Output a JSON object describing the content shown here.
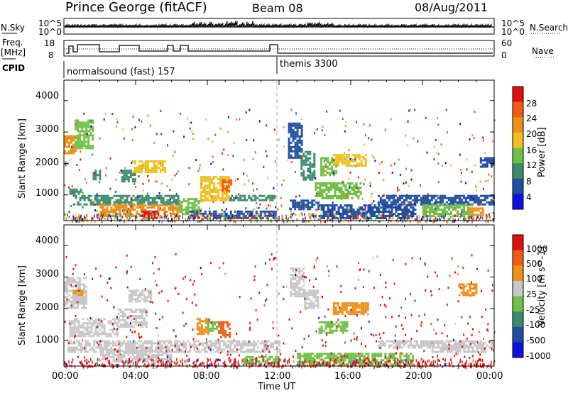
{
  "header": {
    "site": "Prince George (fitACF)",
    "beam": "Beam 08",
    "date": "08/Aug/2011"
  },
  "top_panels": {
    "nsky_label": "N.Sky",
    "nsky_ticks": [
      "10^5",
      "10^0"
    ],
    "nsearch_label": "N.Search",
    "nsearch_ticks": [
      "10^5",
      "10^0"
    ],
    "freq_label": "Freq.",
    "freq_unit": "[MHz]",
    "freq_ticks": [
      "18",
      "8"
    ],
    "nave_label": "Nave",
    "nave_ticks": [
      "60",
      "0"
    ],
    "cpid_label": "CPID",
    "programs": [
      {
        "name": "normalsound (fast) 157",
        "start_hour": 0,
        "end_hour": 12
      },
      {
        "name": "themis 3300",
        "start_hour": 12,
        "end_hour": 24
      }
    ]
  },
  "colors": {
    "power_scale": [
      "#1010e0",
      "#1f4fa0",
      "#3a8c6c",
      "#6fc046",
      "#f0c020",
      "#f09018",
      "#f05a14",
      "#e01010"
    ],
    "velocity_scale": [
      "#1010e0",
      "#1f4fa0",
      "#3a8c6c",
      "#6fc046",
      "#c8c8c8",
      "#f09018",
      "#f05a14",
      "#e01010"
    ]
  },
  "chart_data": [
    {
      "type": "heatmap",
      "parameter": "power",
      "xlabel": "",
      "ylabel": "Slant Range [km]",
      "xlim": [
        0,
        24
      ],
      "ylim": [
        180,
        4650
      ],
      "yticks": [
        "4000",
        "3000",
        "2000",
        "1000"
      ],
      "colorbar": {
        "label": "Power [dB]",
        "ticks": [
          "28",
          "24",
          "20",
          "16",
          "12",
          "8",
          "4"
        ],
        "range": [
          0,
          32
        ]
      },
      "regions": [
        {
          "t0": 0.0,
          "t1": 0.6,
          "r0": 2300,
          "r1": 2900,
          "level": 22
        },
        {
          "t0": 0.6,
          "t1": 1.6,
          "r0": 2500,
          "r1": 3400,
          "level": 12
        },
        {
          "t0": 1.6,
          "t1": 2.0,
          "r0": 1500,
          "r1": 1800,
          "level": 10
        },
        {
          "t0": 0.3,
          "t1": 1.0,
          "r0": 1000,
          "r1": 1200,
          "level": 8
        },
        {
          "t0": 3.2,
          "t1": 4.0,
          "r0": 1400,
          "r1": 1800,
          "level": 10
        },
        {
          "t0": 3.8,
          "t1": 5.6,
          "r0": 1700,
          "r1": 2100,
          "level": 16
        },
        {
          "t0": 0.5,
          "t1": 6.4,
          "r0": 700,
          "r1": 1000,
          "level": 9
        },
        {
          "t0": 2.0,
          "t1": 6.4,
          "r0": 300,
          "r1": 700,
          "level": 21
        },
        {
          "t0": 4.3,
          "t1": 5.2,
          "r0": 250,
          "r1": 500,
          "level": 29
        },
        {
          "t0": 6.4,
          "t1": 7.6,
          "r0": 400,
          "r1": 900,
          "level": 13
        },
        {
          "t0": 7.6,
          "t1": 9.2,
          "r0": 800,
          "r1": 1600,
          "level": 19
        },
        {
          "t0": 8.8,
          "t1": 9.3,
          "r0": 1100,
          "r1": 1500,
          "level": 26
        },
        {
          "t0": 9.2,
          "t1": 11.8,
          "r0": 800,
          "r1": 1000,
          "level": 11
        },
        {
          "t0": 7.0,
          "t1": 11.8,
          "r0": 250,
          "r1": 500,
          "level": 7
        },
        {
          "t0": 12.5,
          "t1": 13.3,
          "r0": 2200,
          "r1": 3300,
          "level": 6
        },
        {
          "t0": 13.2,
          "t1": 14.0,
          "r0": 1500,
          "r1": 2400,
          "level": 10
        },
        {
          "t0": 14.3,
          "t1": 15.2,
          "r0": 1600,
          "r1": 2200,
          "level": 15
        },
        {
          "t0": 15.0,
          "t1": 16.8,
          "r0": 1900,
          "r1": 2300,
          "level": 18
        },
        {
          "t0": 14.0,
          "t1": 16.6,
          "r0": 900,
          "r1": 1400,
          "level": 12
        },
        {
          "t0": 12.6,
          "t1": 14.2,
          "r0": 550,
          "r1": 850,
          "level": 7
        },
        {
          "t0": 14.2,
          "t1": 19.6,
          "r0": 250,
          "r1": 700,
          "level": 6
        },
        {
          "t0": 17.5,
          "t1": 24.0,
          "r0": 700,
          "r1": 1000,
          "level": 5
        },
        {
          "t0": 20.0,
          "t1": 22.8,
          "r0": 350,
          "r1": 700,
          "level": 13
        },
        {
          "t0": 22.6,
          "t1": 23.4,
          "r0": 350,
          "r1": 600,
          "level": 23
        },
        {
          "t0": 23.2,
          "t1": 24.0,
          "r0": 1900,
          "r1": 2200,
          "level": 6
        }
      ]
    },
    {
      "type": "heatmap",
      "parameter": "velocity",
      "xlabel": "Time UT",
      "ylabel": "Slant Range [km]",
      "xlim": [
        0,
        24
      ],
      "ylim": [
        180,
        4650
      ],
      "xticks": [
        "00:00",
        "04:00",
        "08:00",
        "12:00",
        "16:00",
        "20:00",
        "00:00"
      ],
      "yticks": [
        "4000",
        "3000",
        "2000",
        "1000"
      ],
      "colorbar": {
        "label": "Velocity [m s^-1]",
        "ticks": [
          "1000",
          "500",
          "100",
          "25",
          "-25",
          "-100",
          "-500",
          "-1000"
        ]
      },
      "regions": [
        {
          "t0": 0.0,
          "t1": 1.2,
          "r0": 2000,
          "r1": 3000,
          "level": 4
        },
        {
          "t0": 0.5,
          "t1": 1.0,
          "r0": 2400,
          "r1": 2600,
          "level": 5
        },
        {
          "t0": 0.3,
          "t1": 3.0,
          "r0": 1100,
          "r1": 1700,
          "level": 4
        },
        {
          "t0": 3.0,
          "t1": 4.6,
          "r0": 1400,
          "r1": 2000,
          "level": 4
        },
        {
          "t0": 3.6,
          "t1": 4.8,
          "r0": 2200,
          "r1": 2600,
          "level": 4
        },
        {
          "t0": 0.2,
          "t1": 12.0,
          "r0": 600,
          "r1": 1000,
          "level": 4
        },
        {
          "t0": 2.0,
          "t1": 6.0,
          "r0": 300,
          "r1": 700,
          "level": 4
        },
        {
          "t0": 7.4,
          "t1": 8.0,
          "r0": 1200,
          "r1": 1700,
          "level": 5
        },
        {
          "t0": 8.6,
          "t1": 9.2,
          "r0": 1100,
          "r1": 1600,
          "level": 6
        },
        {
          "t0": 8.0,
          "t1": 8.6,
          "r0": 1300,
          "r1": 1600,
          "level": 3
        },
        {
          "t0": 10.0,
          "t1": 12.0,
          "r0": 250,
          "r1": 500,
          "level": 3
        },
        {
          "t0": 12.6,
          "t1": 13.4,
          "r0": 2400,
          "r1": 3300,
          "level": 4
        },
        {
          "t0": 13.4,
          "t1": 14.2,
          "r0": 2000,
          "r1": 2600,
          "level": 4
        },
        {
          "t0": 15.0,
          "t1": 17.0,
          "r0": 1800,
          "r1": 2200,
          "level": 5
        },
        {
          "t0": 14.2,
          "t1": 15.8,
          "r0": 1200,
          "r1": 1600,
          "level": 3
        },
        {
          "t0": 13.0,
          "t1": 19.5,
          "r0": 250,
          "r1": 600,
          "level": 3
        },
        {
          "t0": 17.5,
          "t1": 24.0,
          "r0": 750,
          "r1": 1000,
          "level": 4
        },
        {
          "t0": 20.5,
          "t1": 23.5,
          "r0": 600,
          "r1": 800,
          "level": 4
        },
        {
          "t0": 22.0,
          "t1": 23.0,
          "r0": 2400,
          "r1": 2800,
          "level": 5
        }
      ]
    }
  ]
}
